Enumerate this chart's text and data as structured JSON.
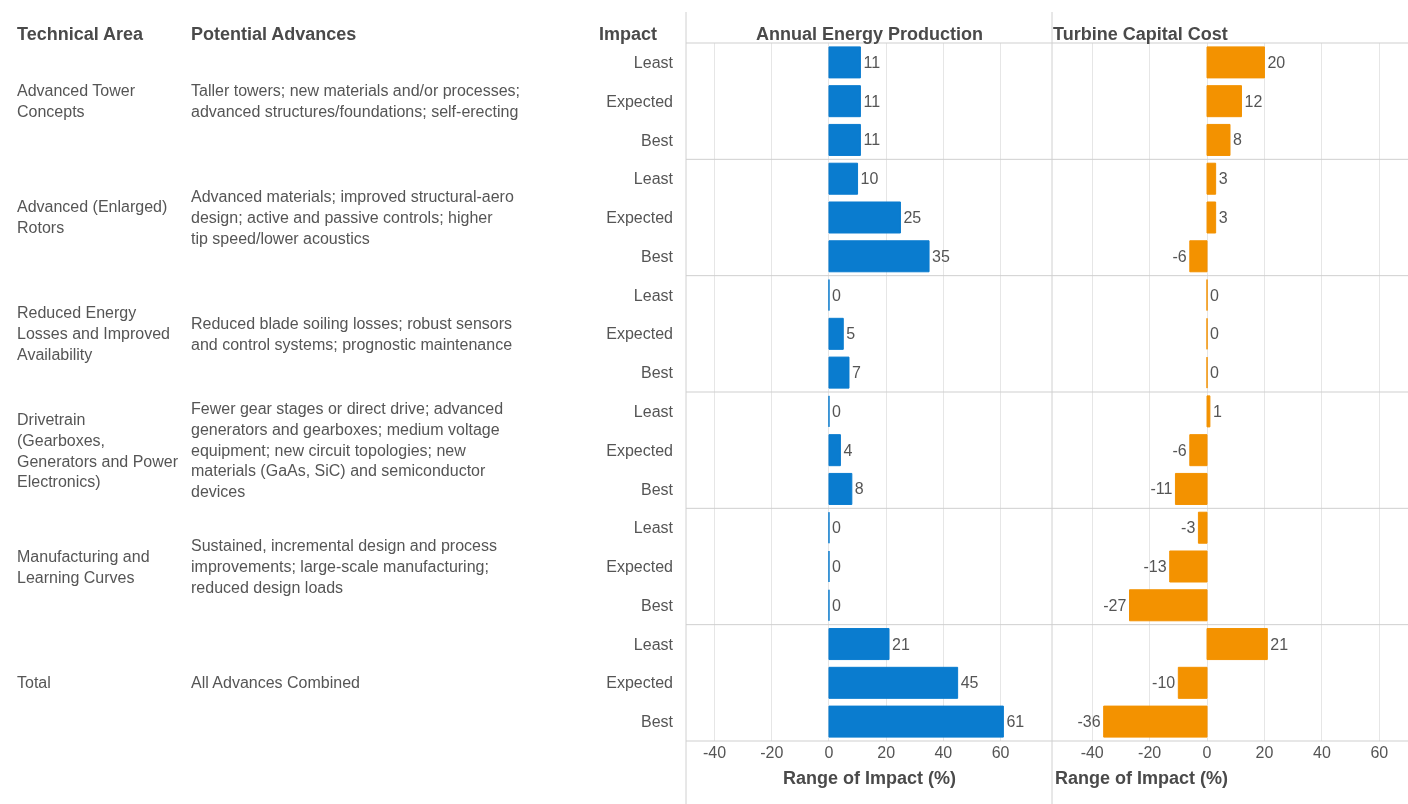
{
  "chart_data": [
    {
      "type": "bar",
      "orientation": "horizontal",
      "title": "Annual Energy Production",
      "xlabel": "Range of Impact (%)",
      "categories": [
        "Least",
        "Expected",
        "Best",
        "Least",
        "Expected",
        "Best",
        "Least",
        "Expected",
        "Best",
        "Least",
        "Expected",
        "Best",
        "Least",
        "Expected",
        "Best",
        "Least",
        "Expected",
        "Best"
      ],
      "values": [
        11,
        11,
        11,
        10,
        25,
        35,
        0,
        5,
        7,
        0,
        4,
        8,
        0,
        0,
        0,
        21,
        45,
        61
      ],
      "color": "#0a7ccf",
      "xlim": [
        -50,
        78
      ],
      "xticks": [
        -40,
        -20,
        0,
        20,
        40,
        60
      ],
      "grid": "x",
      "data_labels": true,
      "annotations": [
        "Technical Area",
        "Potential Advances",
        "Impact",
        "Advanced Tower Concepts",
        "Taller towers; new materials and/or processes; advanced structures/foundations; self-erecting",
        "Advanced (Enlarged) Rotors",
        "Advanced materials; improved structural-aero design; active and passive controls; higher tip speed/lower acoustics",
        "Reduced Energy Losses and Improved Availability",
        "Reduced blade soiling losses; robust sensors and control systems; prognostic maintenance",
        "Drivetrain (Gearboxes, Generators and Power Electronics)",
        "Fewer gear stages or direct drive; advanced generators and gearboxes; medium voltage equipment; new circuit topologies; new materials (GaAs, SiC) and semiconductor devices",
        "Manufacturing and Learning Curves",
        "Sustained, incremental design and process improvements; large-scale manufacturing; reduced design loads",
        "Total",
        "All Advances Combined"
      ]
    },
    {
      "type": "bar",
      "orientation": "horizontal",
      "title": "Turbine Capital Cost",
      "xlabel": "Range of Impact (%)",
      "categories": [
        "Least",
        "Expected",
        "Best",
        "Least",
        "Expected",
        "Best",
        "Least",
        "Expected",
        "Best",
        "Least",
        "Expected",
        "Best",
        "Least",
        "Expected",
        "Best",
        "Least",
        "Expected",
        "Best"
      ],
      "values": [
        20,
        12,
        8,
        3,
        3,
        -6,
        0,
        0,
        0,
        1,
        -6,
        -11,
        -3,
        -13,
        -27,
        21,
        -10,
        -36
      ],
      "color": "#f39200",
      "xlim": [
        -54,
        70
      ],
      "xticks": [
        -40,
        -20,
        0,
        20,
        40,
        60
      ],
      "grid": "x",
      "data_labels": true,
      "tick_labels": "x"
    }
  ]
}
